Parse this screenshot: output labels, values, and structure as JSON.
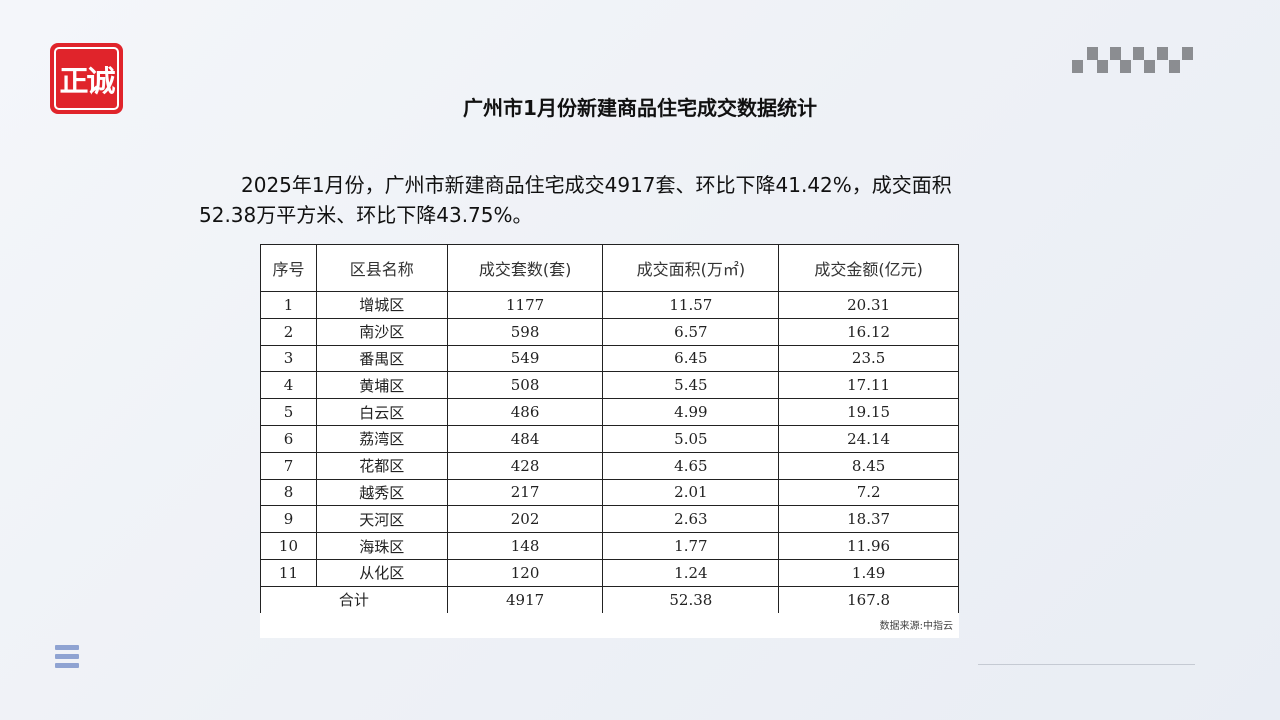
{
  "logo": {
    "text": "正诚",
    "color": "#e0242b"
  },
  "title": "广州市1月份新建商品住宅成交数据统计",
  "paragraph": "2025年1月份，广州市新建商品住宅成交4917套、环比下降41.42%，成交面积52.38万平方米、环比下降43.75%。",
  "table": {
    "headers": [
      "序号",
      "区县名称",
      "成交套数(套)",
      "成交面积(万㎡)",
      "成交金额(亿元)"
    ],
    "rows": [
      [
        "1",
        "增城区",
        "1177",
        "11.57",
        "20.31"
      ],
      [
        "2",
        "南沙区",
        "598",
        "6.57",
        "16.12"
      ],
      [
        "3",
        "番禺区",
        "549",
        "6.45",
        "23.5"
      ],
      [
        "4",
        "黄埔区",
        "508",
        "5.45",
        "17.11"
      ],
      [
        "5",
        "白云区",
        "486",
        "4.99",
        "19.15"
      ],
      [
        "6",
        "荔湾区",
        "484",
        "5.05",
        "24.14"
      ],
      [
        "7",
        "花都区",
        "428",
        "4.65",
        "8.45"
      ],
      [
        "8",
        "越秀区",
        "217",
        "2.01",
        "7.2"
      ],
      [
        "9",
        "天河区",
        "202",
        "2.63",
        "18.37"
      ],
      [
        "10",
        "海珠区",
        "148",
        "1.77",
        "11.96"
      ],
      [
        "11",
        "从化区",
        "120",
        "1.24",
        "1.49"
      ]
    ],
    "total": {
      "label": "合计",
      "units": "4917",
      "area": "52.38",
      "amount": "167.8"
    },
    "source": "数据来源:中指云"
  },
  "icons": {
    "menu": "menu-icon",
    "pattern": "checker-pattern"
  }
}
